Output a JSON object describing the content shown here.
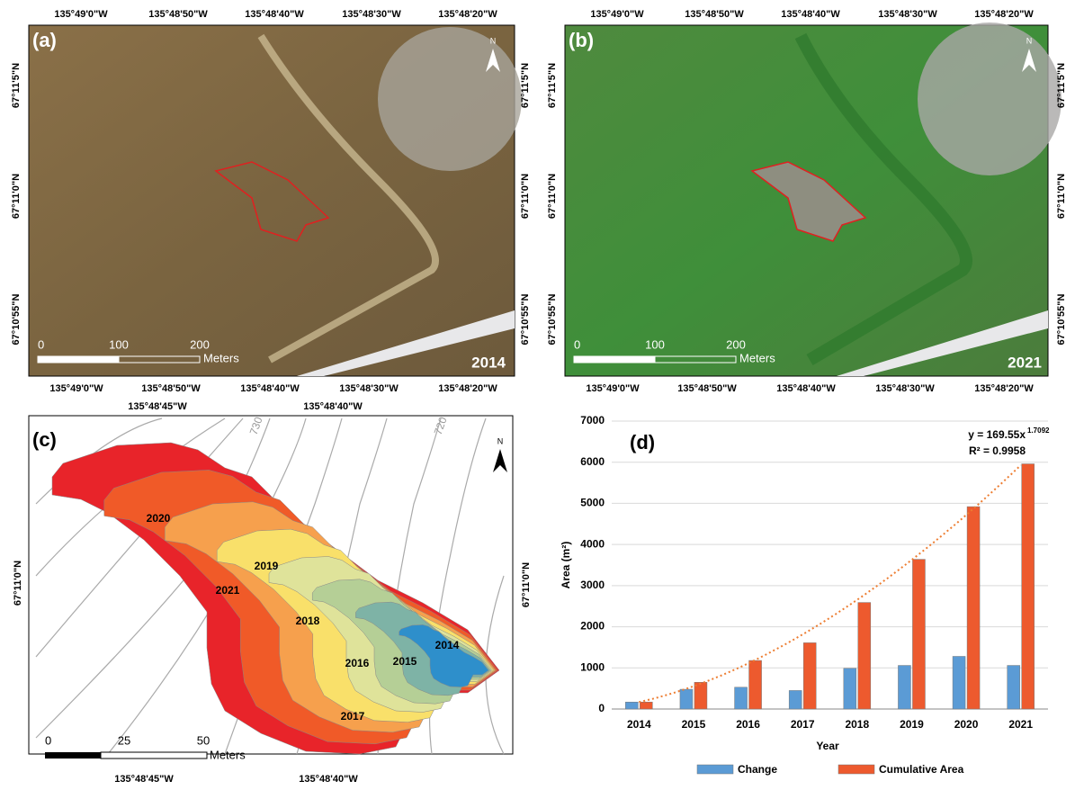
{
  "panels": {
    "a": {
      "label": "(a)",
      "year": "2014",
      "north": "N",
      "x_labels": [
        "135°49'0\"W",
        "135°48'50\"W",
        "135°48'40\"W",
        "135°48'30\"W",
        "135°48'20\"W"
      ],
      "y_labels": [
        "67°11'5\"N",
        "67°11'0\"N",
        "67°10'55\"N"
      ],
      "scale": [
        0,
        100,
        200
      ],
      "scale_unit": "Meters"
    },
    "b": {
      "label": "(b)",
      "year": "2021",
      "north": "N",
      "x_labels": [
        "135°49'0\"W",
        "135°48'50\"W",
        "135°48'40\"W",
        "135°48'30\"W",
        "135°48'20\"W"
      ],
      "y_labels": [
        "67°11'5\"N",
        "67°11'0\"N",
        "67°10'55\"N"
      ],
      "scale": [
        0,
        100,
        200
      ],
      "scale_unit": "Meters"
    },
    "c": {
      "label": "(c)",
      "north": "N",
      "x_labels": [
        "135°48'45\"W",
        "135°48'40\"W"
      ],
      "y_labels": [
        "67°11'0\"N"
      ],
      "contours": [
        "730",
        "720"
      ],
      "years": [
        "2021",
        "2020",
        "2019",
        "2018",
        "2017",
        "2016",
        "2015",
        "2014"
      ],
      "scale": [
        0,
        25,
        50
      ],
      "scale_unit": "Meters"
    }
  },
  "chart_data": {
    "type": "bar",
    "label": "(d)",
    "y_label": "Area (m²)",
    "x_label": "Year",
    "categories": [
      "2014",
      "2015",
      "2016",
      "2017",
      "2018",
      "2019",
      "2020",
      "2021"
    ],
    "series": [
      {
        "name": "Change",
        "color": "#5b9bd5",
        "values": [
          170,
          480,
          530,
          450,
          990,
          1060,
          1280,
          1060
        ]
      },
      {
        "name": "Cumulative Area",
        "color": "#ed5a2e",
        "values": [
          170,
          650,
          1180,
          1610,
          2590,
          3640,
          4920,
          5960
        ]
      }
    ],
    "trendline": {
      "label": "y = 169.55x",
      "coefficient": 169.55,
      "exponent": 1.7092,
      "r2_label": "R² = 0.9958",
      "color": "#ed7d31"
    },
    "ylim": [
      0,
      7000
    ],
    "yticks": [
      0,
      1000,
      2000,
      3000,
      4000,
      5000,
      6000,
      7000
    ],
    "grid": true,
    "legend": "bottom"
  }
}
